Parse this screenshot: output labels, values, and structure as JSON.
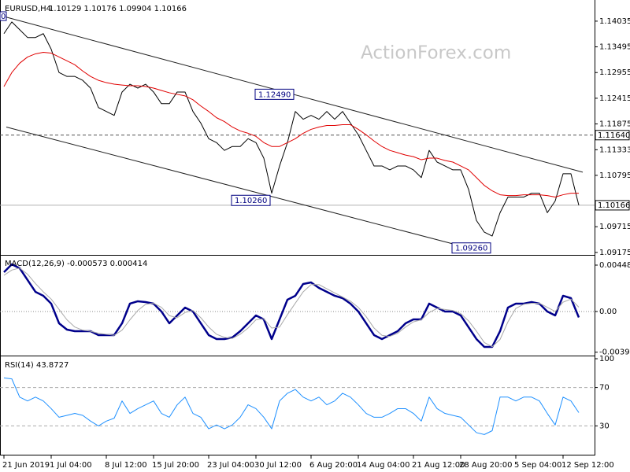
{
  "chart_data": [
    {
      "type": "line",
      "title": "EURUSD,H4",
      "quote": "1.10129 1.10176 1.09904 1.10166",
      "watermark": "ActionForex.com",
      "corner_label": "0",
      "ylim": [
        1.0914,
        1.1443
      ],
      "yticks": [
        1.14035,
        1.13495,
        1.12955,
        1.12415,
        1.11875,
        1.11333,
        1.10795,
        1.09715,
        1.09175
      ],
      "grid": false,
      "xticks": [
        {
          "value": 0,
          "label": "21 Jun 2019"
        },
        {
          "value": 6,
          "label": "1 Jul 04:00"
        },
        {
          "value": 13,
          "label": "8 Jul 12:00"
        },
        {
          "value": 19,
          "label": "15 Jul 20:00"
        },
        {
          "value": 26,
          "label": "23 Jul 04:00"
        },
        {
          "value": 32,
          "label": "30 Jul 12:00"
        },
        {
          "value": 39,
          "label": "6 Aug 20:00"
        },
        {
          "value": 45,
          "label": "14 Aug 04:00"
        },
        {
          "value": 52,
          "label": "21 Aug 12:00"
        },
        {
          "value": 58,
          "label": "28 Aug 20:00"
        },
        {
          "value": 65,
          "label": "5 Sep 04:00"
        },
        {
          "value": 71,
          "label": "12 Sep 12:00"
        }
      ],
      "series": [
        {
          "color": "#000000",
          "values": [
            1.13773,
            1.14019,
            1.13855,
            1.13691,
            1.13691,
            1.13773,
            1.13446,
            1.12955,
            1.12873,
            1.12873,
            1.12792,
            1.12628,
            1.12219,
            1.12137,
            1.12055,
            1.12546,
            1.1271,
            1.12628,
            1.1271,
            1.12546,
            1.12301,
            1.12301,
            1.12546,
            1.12546,
            1.12137,
            1.11892,
            1.11565,
            1.11483,
            1.11319,
            1.11401,
            1.11401,
            1.11565,
            1.11483,
            1.11156,
            1.10419,
            1.10992,
            1.11483,
            1.12137,
            1.11974,
            1.12055,
            1.11974,
            1.12137,
            1.11974,
            1.12137,
            1.11892,
            1.11646,
            1.11319,
            1.10992,
            1.10992,
            1.1091,
            1.10992,
            1.10992,
            1.1091,
            1.10747,
            1.11319,
            1.11074,
            1.10992,
            1.1091,
            1.1091,
            1.10501,
            1.09847,
            1.09601,
            1.0952,
            1.1001,
            1.10338,
            1.10338,
            1.10338,
            1.10419,
            1.10419,
            1.1001,
            1.10256,
            1.10828,
            1.10828,
            1.10166
          ]
        },
        {
          "color": "#e00000",
          "values": [
            1.12661,
            1.12955,
            1.13152,
            1.13282,
            1.13348,
            1.13381,
            1.13364,
            1.13282,
            1.13201,
            1.13119,
            1.12988,
            1.12873,
            1.12792,
            1.12743,
            1.1271,
            1.12693,
            1.12677,
            1.12677,
            1.12661,
            1.12628,
            1.12579,
            1.1253,
            1.12497,
            1.12464,
            1.12383,
            1.12252,
            1.12137,
            1.12006,
            1.11925,
            1.1181,
            1.11728,
            1.11679,
            1.11614,
            1.11483,
            1.11401,
            1.11401,
            1.11483,
            1.11565,
            1.11679,
            1.11761,
            1.1181,
            1.11843,
            1.11843,
            1.11859,
            1.11859,
            1.11761,
            1.11646,
            1.11516,
            1.11401,
            1.11319,
            1.1127,
            1.11221,
            1.11188,
            1.11123,
            1.11156,
            1.11156,
            1.11107,
            1.11074,
            1.10992,
            1.1091,
            1.10747,
            1.10583,
            1.10469,
            1.10387,
            1.1037,
            1.1037,
            1.10387,
            1.10387,
            1.10387,
            1.1037,
            1.10338,
            1.10387,
            1.10419,
            1.10419
          ]
        }
      ],
      "levels": [
        {
          "value": 1.1164,
          "label": "1.11640",
          "style": "dashed",
          "color": "#555555"
        },
        {
          "value": 1.10166,
          "label": "1.10166",
          "style": "solid",
          "color": "#b0b0b0"
        }
      ],
      "annotations": [
        {
          "text": "1.12490",
          "index": 37,
          "value": 1.1249
        },
        {
          "text": "1.10260",
          "index": 34,
          "value": 1.1026
        },
        {
          "text": "1.09260",
          "index": 62,
          "value": 1.0926
        }
      ],
      "channels": [
        {
          "x": [
            0,
            73.5
          ],
          "y": [
            1.14133,
            1.10861
          ]
        },
        {
          "x": [
            0.3,
            61.5
          ],
          "y": [
            1.1181,
            1.0916
          ]
        }
      ]
    },
    {
      "type": "line",
      "title": "MACD(12,26,9) -0.000573 0.000414",
      "ylim": [
        -0.00418,
        0.00524
      ],
      "yticks": [
        0.00448,
        {
          "value": 0,
          "label": "0.00"
        },
        -0.003928
      ],
      "grid": false,
      "series": [
        {
          "color": "#00008b",
          "width": 2.5,
          "values": [
            0.0038,
            0.00456,
            0.00418,
            0.00304,
            0.0019,
            0.00152,
            0.00076,
            -0.00114,
            -0.00175,
            -0.0019,
            -0.0019,
            -0.0019,
            -0.00228,
            -0.00228,
            -0.00228,
            -0.00114,
            0.00076,
            0.00099,
            0.00091,
            0.00076,
            0,
            -0.00114,
            -0.00038,
            0.00038,
            0,
            -0.00114,
            -0.00228,
            -0.00266,
            -0.00266,
            -0.00251,
            -0.0019,
            -0.00114,
            -0.00038,
            -0.00076,
            -0.00266,
            -0.00076,
            0.00114,
            0.00152,
            0.00266,
            0.00281,
            0.00228,
            0.0019,
            0.00152,
            0.00129,
            0.00076,
            0,
            -0.00114,
            -0.00228,
            -0.00266,
            -0.00228,
            -0.0019,
            -0.00114,
            -0.00076,
            -0.00076,
            0.00076,
            0.00038,
            0,
            0,
            -0.00038,
            -0.00152,
            -0.00266,
            -0.00342,
            -0.00342,
            -0.0019,
            0.00038,
            0.00076,
            0.00076,
            0.00091,
            0.00076,
            0,
            -0.00038,
            0.00152,
            0.00129,
            -0.000573
          ]
        },
        {
          "color": "#a9a9a9",
          "width": 1,
          "values": [
            0.0035,
            0.004,
            0.0042,
            0.0036,
            0.0027,
            0.0019,
            0.0012,
            0.0002,
            -0.0008,
            -0.0015,
            -0.0018,
            -0.0019,
            -0.0021,
            -0.0022,
            -0.0023,
            -0.0018,
            -0.0008,
            0.0001,
            0.0007,
            0.0008,
            0.0004,
            -0.0004,
            -0.0006,
            -0.0001,
            0.0001,
            -0.0006,
            -0.0015,
            -0.0022,
            -0.0025,
            -0.0026,
            -0.0022,
            -0.0016,
            -0.0008,
            -0.0007,
            -0.0016,
            -0.0015,
            -0.0003,
            0.0008,
            0.0019,
            0.0026,
            0.0026,
            0.0022,
            0.0018,
            0.0014,
            0.001,
            0.0004,
            -0.0005,
            -0.0016,
            -0.0023,
            -0.0024,
            -0.0021,
            -0.0015,
            -0.001,
            -0.0008,
            -0.0001,
            0.0003,
            0.0002,
            0.0001,
            -0.0002,
            -0.0009,
            -0.0019,
            -0.003,
            -0.0034,
            -0.0027,
            -0.001,
            0.0003,
            0.0007,
            0.0008,
            0.0008,
            0.0004,
            0,
            0.0009,
            0.0012,
            0.000414
          ]
        }
      ],
      "levels": [
        {
          "value": 0,
          "style": "dotted",
          "color": "#888888"
        }
      ]
    },
    {
      "type": "line",
      "title": "RSI(14) 43.8727",
      "ylim": [
        0,
        100
      ],
      "yticks": [
        100,
        70,
        30
      ],
      "grid": false,
      "series": [
        {
          "color": "#1e90ff",
          "width": 1,
          "values": [
            80,
            79,
            60,
            56,
            60,
            56,
            48,
            39,
            41,
            43,
            41,
            35,
            30,
            35,
            38,
            56,
            43,
            48,
            52,
            56,
            43,
            39,
            52,
            60,
            43,
            39,
            27,
            31,
            27,
            31,
            39,
            52,
            48,
            39,
            27,
            56,
            64,
            68,
            60,
            56,
            60,
            52,
            56,
            64,
            60,
            52,
            43,
            39,
            39,
            43,
            48,
            48,
            43,
            35,
            60,
            48,
            43,
            41,
            39,
            31,
            23,
            21,
            25,
            60,
            60,
            56,
            60,
            60,
            56,
            43,
            31,
            60,
            56,
            43.8727
          ]
        }
      ],
      "levels": [
        {
          "value": 70,
          "style": "dashed",
          "color": "#aaaaaa"
        },
        {
          "value": 30,
          "style": "dashed",
          "color": "#aaaaaa"
        }
      ]
    }
  ]
}
